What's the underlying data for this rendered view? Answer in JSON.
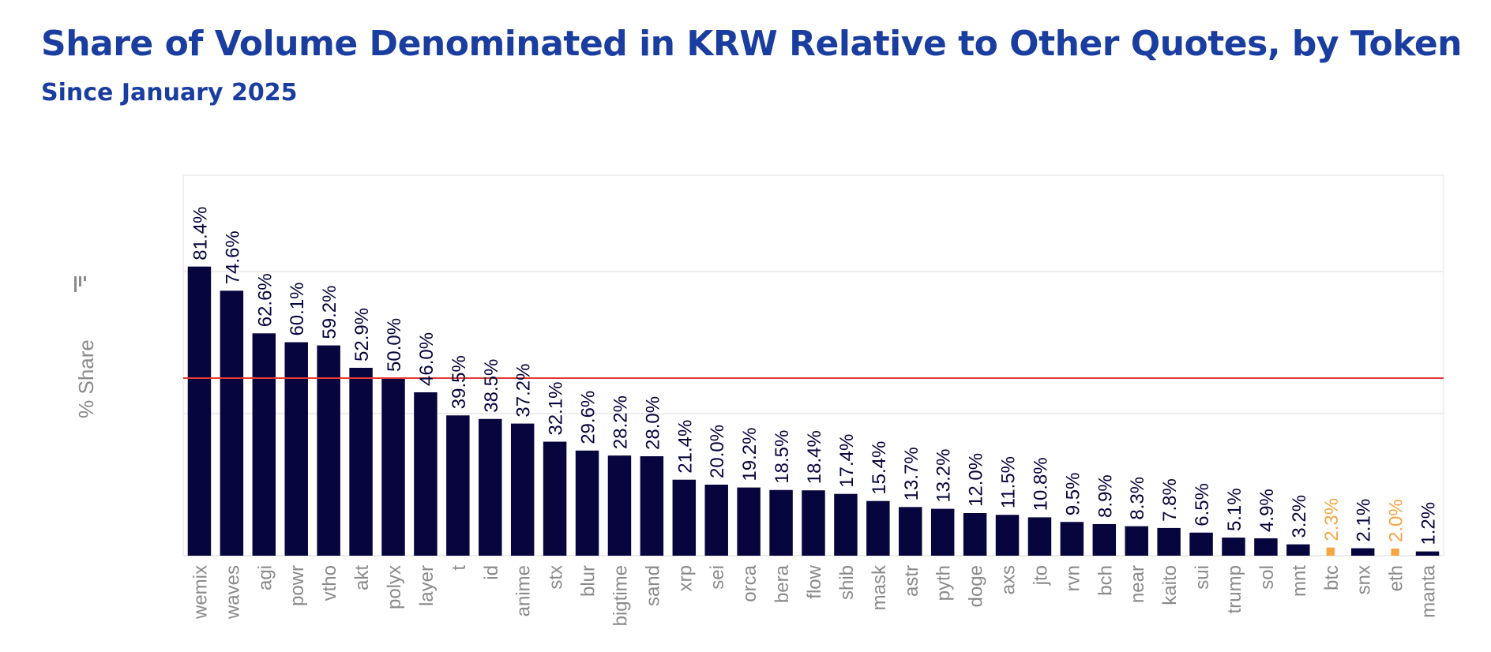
{
  "title": "Share of Volume Denominated in KRW Relative to Other Quotes, by Token",
  "subtitle": "Since January 2025",
  "colors": {
    "title": "#1a3da0",
    "bar": "#06053e",
    "highlight": "#f7a541",
    "reference_line": "#e53935",
    "gridline": "#ececec",
    "axis_text": "#8a8a8a"
  },
  "chart_data": {
    "type": "bar",
    "ylabel": "% Share",
    "ylabel_icon": "filter-bars-icon",
    "ylim": [
      0,
      100
    ],
    "gridlines": [
      0,
      40,
      80
    ],
    "reference_line": 50,
    "grid": true,
    "categories": [
      "wemix",
      "waves",
      "agi",
      "powr",
      "vtho",
      "akt",
      "polyx",
      "layer",
      "t",
      "id",
      "anime",
      "stx",
      "blur",
      "bigtime",
      "sand",
      "xrp",
      "sei",
      "orca",
      "bera",
      "flow",
      "shib",
      "mask",
      "astr",
      "pyth",
      "doge",
      "axs",
      "jto",
      "rvn",
      "bch",
      "near",
      "kaito",
      "sui",
      "trump",
      "sol",
      "mnt",
      "btc",
      "snx",
      "eth",
      "manta"
    ],
    "values": [
      81.4,
      74.6,
      62.6,
      60.1,
      59.2,
      52.9,
      50.0,
      46.0,
      39.5,
      38.5,
      37.2,
      32.1,
      29.6,
      28.2,
      28.0,
      21.4,
      20.0,
      19.2,
      18.5,
      18.4,
      17.4,
      15.4,
      13.7,
      13.2,
      12.0,
      11.5,
      10.8,
      9.5,
      8.9,
      8.3,
      7.8,
      6.5,
      5.1,
      4.9,
      3.2,
      2.3,
      2.1,
      2.0,
      1.2
    ],
    "labels": [
      "81.4%",
      "74.6%",
      "62.6%",
      "60.1%",
      "59.2%",
      "52.9%",
      "50.0%",
      "46.0%",
      "39.5%",
      "38.5%",
      "37.2%",
      "32.1%",
      "29.6%",
      "28.2%",
      "28.0%",
      "21.4%",
      "20.0%",
      "19.2%",
      "18.5%",
      "18.4%",
      "17.4%",
      "15.4%",
      "13.7%",
      "13.2%",
      "12.0%",
      "11.5%",
      "10.8%",
      "9.5%",
      "8.9%",
      "8.3%",
      "7.8%",
      "6.5%",
      "5.1%",
      "4.9%",
      "3.2%",
      "2.3%",
      "2.1%",
      "2.0%",
      "1.2%"
    ],
    "highlighted": [
      "btc",
      "eth"
    ]
  }
}
